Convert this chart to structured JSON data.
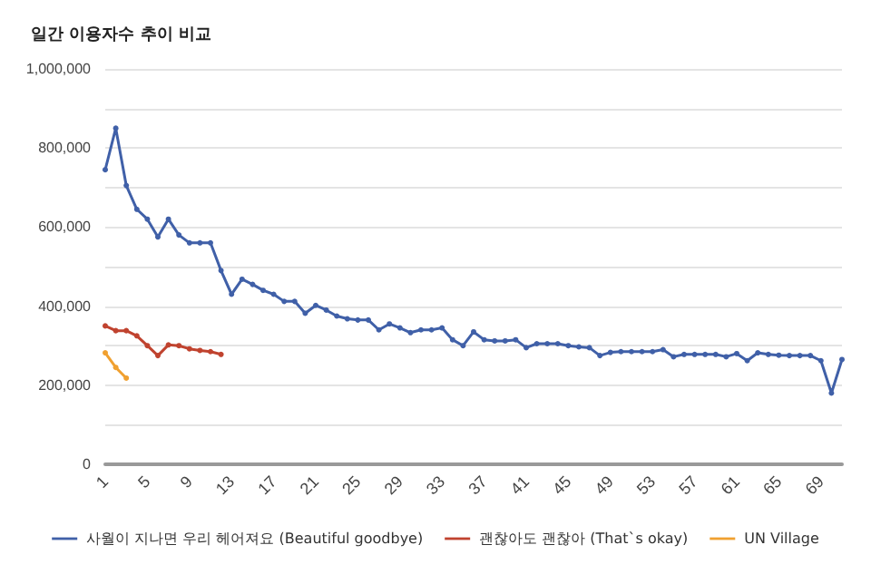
{
  "chart_data": {
    "type": "line",
    "title": "일간 이용자수 추이 비교",
    "categories": [
      "1",
      null,
      null,
      null,
      "5",
      null,
      null,
      null,
      "9",
      null,
      null,
      null,
      "13",
      null,
      null,
      null,
      "17",
      null,
      null,
      null,
      "21",
      null,
      null,
      null,
      "25",
      null,
      null,
      null,
      "29",
      null,
      null,
      null,
      "33",
      null,
      null,
      null,
      "37",
      null,
      null,
      null,
      "41",
      null,
      null,
      null,
      "45",
      null,
      null,
      null,
      "49",
      null,
      null,
      null,
      "53",
      null,
      null,
      null,
      "57",
      null,
      null,
      null,
      "61",
      null,
      null,
      null,
      "65",
      null,
      null,
      null,
      "69",
      null,
      null
    ],
    "series": [
      {
        "name": "사월이 지나면 우리 헤어져요 (Beautiful goodbye)",
        "color": "#4060a8",
        "values": [
          745000,
          850000,
          705000,
          645000,
          620000,
          575000,
          620000,
          580000,
          560000,
          560000,
          560000,
          490000,
          430000,
          468000,
          455000,
          440000,
          430000,
          412000,
          412000,
          382000,
          402000,
          390000,
          375000,
          368000,
          365000,
          365000,
          340000,
          355000,
          345000,
          333000,
          340000,
          340000,
          345000,
          315000,
          300000,
          335000,
          315000,
          312000,
          312000,
          315000,
          295000,
          305000,
          305000,
          305000,
          300000,
          297000,
          295000,
          275000,
          283000,
          285000,
          285000,
          285000,
          285000,
          290000,
          272000,
          278000,
          278000,
          278000,
          278000,
          272000,
          280000,
          262000,
          282000,
          278000,
          276000,
          275000,
          275000,
          275000,
          262000,
          180000,
          265000
        ]
      },
      {
        "name": "괜찮아도 괜찮아 (That`s okay)",
        "color": "#c0432f",
        "values": [
          350000,
          338000,
          338000,
          325000,
          300000,
          275000,
          302000,
          300000,
          292000,
          288000,
          285000,
          278000,
          null,
          null,
          null,
          null,
          null,
          null,
          null,
          null,
          null,
          null,
          null,
          null,
          null,
          null,
          null,
          null,
          null,
          null,
          null,
          null,
          null,
          null,
          null,
          null,
          null,
          null,
          null,
          null,
          null,
          null,
          null,
          null,
          null,
          null,
          null,
          null,
          null,
          null,
          null,
          null,
          null,
          null,
          null,
          null,
          null,
          null,
          null,
          null,
          null,
          null,
          null,
          null,
          null,
          null,
          null,
          null,
          null,
          null,
          null
        ]
      },
      {
        "name": "UN Village",
        "color": "#f0a030",
        "values": [
          282000,
          245000,
          218000,
          null,
          null,
          null,
          null,
          null,
          null,
          null,
          null,
          null,
          null,
          null,
          null,
          null,
          null,
          null,
          null,
          null,
          null,
          null,
          null,
          null,
          null,
          null,
          null,
          null,
          null,
          null,
          null,
          null,
          null,
          null,
          null,
          null,
          null,
          null,
          null,
          null,
          null,
          null,
          null,
          null,
          null,
          null,
          null,
          null,
          null,
          null,
          null,
          null,
          null,
          null,
          null,
          null,
          null,
          null,
          null,
          null,
          null,
          null,
          null,
          null,
          null,
          null,
          null,
          null,
          null,
          null,
          null
        ]
      }
    ],
    "ylim": [
      0,
      1000000
    ],
    "yticks": [
      0,
      {
        "value": 100000,
        "label": null
      },
      {
        "value": 200000,
        "label": "200,000"
      },
      {
        "value": 300000,
        "label": null
      },
      {
        "value": 400000,
        "label": "400,000"
      },
      {
        "value": 500000,
        "label": null
      },
      {
        "value": 600000,
        "label": "600,000"
      },
      {
        "value": 700000,
        "label": null
      },
      {
        "value": 800000,
        "label": "800,000"
      },
      {
        "value": 900000,
        "label": null
      },
      {
        "value": 1000000,
        "label": "1,000,000"
      }
    ],
    "grid": "y",
    "legend": "bottom",
    "marker": "circle",
    "line_style": "solid"
  }
}
